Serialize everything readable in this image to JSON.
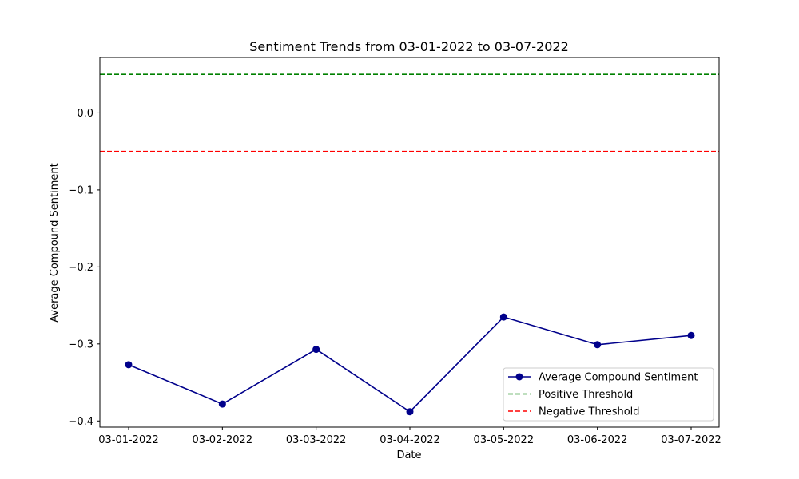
{
  "chart_data": {
    "type": "line",
    "title": "Sentiment Trends from 03-01-2022 to 03-07-2022",
    "xlabel": "Date",
    "ylabel": "Average Compound Sentiment",
    "categories": [
      "03-01-2022",
      "03-02-2022",
      "03-03-2022",
      "03-04-2022",
      "03-05-2022",
      "03-06-2022",
      "03-07-2022"
    ],
    "series": [
      {
        "name": "Average Compound Sentiment",
        "values": [
          -0.327,
          -0.378,
          -0.307,
          -0.388,
          -0.265,
          -0.301,
          -0.289
        ],
        "color": "#00008b",
        "style": "solid",
        "marker": "circle"
      }
    ],
    "thresholds": [
      {
        "name": "Positive Threshold",
        "value": 0.05,
        "color": "#008000",
        "style": "dashed"
      },
      {
        "name": "Negative Threshold",
        "value": -0.05,
        "color": "#ff0000",
        "style": "dashed"
      }
    ],
    "ylim": [
      -0.408,
      0.072
    ],
    "yticks": [
      0.0,
      -0.1,
      -0.2,
      -0.3,
      -0.4
    ],
    "ytick_labels": [
      "0.0",
      "−0.1",
      "−0.2",
      "−0.3",
      "−0.4"
    ],
    "grid": false,
    "legend_position": "lower-right"
  }
}
